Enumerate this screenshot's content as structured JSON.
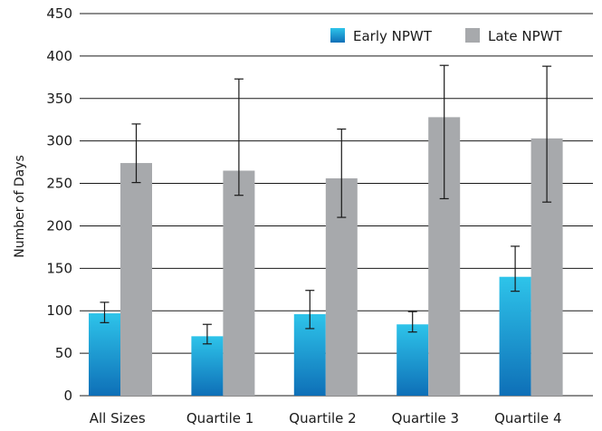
{
  "chart_data": {
    "type": "bar",
    "categories": [
      "All Sizes",
      "Quartile 1",
      "Quartile 2",
      "Quartile 3",
      "Quartile 4"
    ],
    "series": [
      {
        "name": "Early NPWT",
        "values": [
          97,
          70,
          96,
          84,
          140
        ],
        "error_low": [
          86,
          61,
          79,
          75,
          123
        ],
        "error_high": [
          110,
          84,
          124,
          99,
          176
        ],
        "color_top": "#2EC4EA",
        "color_bottom": "#0E6FB7"
      },
      {
        "name": "Late NPWT",
        "values": [
          274,
          265,
          256,
          328,
          303
        ],
        "error_low": [
          251,
          236,
          210,
          232,
          228
        ],
        "error_high": [
          320,
          373,
          314,
          389,
          388
        ],
        "color": "#A7A9AC"
      }
    ],
    "title": "",
    "xlabel": "",
    "ylabel": "Number of Days",
    "ylim": [
      0,
      450
    ],
    "yticks": [
      0,
      50,
      100,
      150,
      200,
      250,
      300,
      350,
      400,
      450
    ],
    "grid": true,
    "legend_position": "top-right"
  }
}
